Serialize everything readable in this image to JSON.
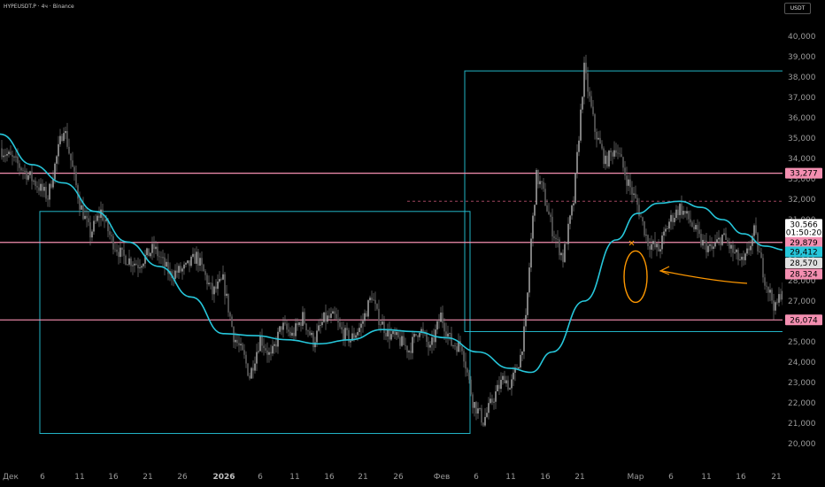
{
  "header": {
    "symbol": "HYPEUSDT.P · 4ч · Binance",
    "unit": "USDT"
  },
  "chart_data": {
    "type": "candlestick",
    "ylim": [
      20000,
      41000
    ],
    "y_ticks": [
      "20,000",
      "21,000",
      "22,000",
      "23,000",
      "24,000",
      "25,000",
      "26,000",
      "27,000",
      "28,000",
      "29,000",
      "30,000",
      "31,000",
      "32,000",
      "33,000",
      "34,000",
      "35,000",
      "36,000",
      "37,000",
      "38,000",
      "39,000",
      "40,000"
    ],
    "x_ticks": [
      {
        "label": "Дек",
        "bold": false
      },
      {
        "label": "6",
        "bold": false
      },
      {
        "label": "11",
        "bold": false
      },
      {
        "label": "16",
        "bold": false
      },
      {
        "label": "21",
        "bold": false
      },
      {
        "label": "26",
        "bold": false
      },
      {
        "label": "2026",
        "bold": true
      },
      {
        "label": "6",
        "bold": false
      },
      {
        "label": "11",
        "bold": false
      },
      {
        "label": "16",
        "bold": false
      },
      {
        "label": "21",
        "bold": false
      },
      {
        "label": "26",
        "bold": false
      },
      {
        "label": "Фев",
        "bold": false
      },
      {
        "label": "6",
        "bold": false
      },
      {
        "label": "11",
        "bold": false
      },
      {
        "label": "16",
        "bold": false
      },
      {
        "label": "21",
        "bold": false
      },
      {
        "label": "Мар",
        "bold": false
      },
      {
        "label": "6",
        "bold": false
      },
      {
        "label": "11",
        "bold": false
      },
      {
        "label": "16",
        "bold": false
      },
      {
        "label": "21",
        "bold": false
      }
    ],
    "price_path": [
      [
        0,
        34500
      ],
      [
        3,
        33800
      ],
      [
        6,
        33000
      ],
      [
        9,
        32100
      ],
      [
        12,
        35600
      ],
      [
        15,
        31800
      ],
      [
        17,
        30300
      ],
      [
        19,
        31400
      ],
      [
        21,
        30000
      ],
      [
        23,
        29200
      ],
      [
        26,
        28800
      ],
      [
        29,
        29600
      ],
      [
        32,
        28300
      ],
      [
        35,
        28600
      ],
      [
        37,
        29200
      ],
      [
        40,
        27400
      ],
      [
        42,
        28000
      ],
      [
        44,
        25300
      ],
      [
        46,
        24200
      ],
      [
        47,
        23300
      ],
      [
        49,
        25200
      ],
      [
        51,
        24200
      ],
      [
        53,
        25800
      ],
      [
        55,
        25300
      ],
      [
        57,
        26200
      ],
      [
        59,
        25000
      ],
      [
        61,
        26100
      ],
      [
        63,
        26200
      ],
      [
        64,
        25600
      ],
      [
        66,
        25100
      ],
      [
        68,
        25800
      ],
      [
        70,
        27300
      ],
      [
        71,
        26300
      ],
      [
        73,
        25400
      ],
      [
        75,
        25100
      ],
      [
        77,
        24600
      ],
      [
        79,
        25700
      ],
      [
        81,
        24600
      ],
      [
        83,
        26300
      ],
      [
        85,
        24900
      ],
      [
        87,
        24800
      ],
      [
        89,
        22100
      ],
      [
        91,
        21100
      ],
      [
        93,
        22300
      ],
      [
        95,
        23300
      ],
      [
        96,
        22700
      ],
      [
        98,
        24300
      ],
      [
        99,
        26000
      ],
      [
        100,
        30000
      ],
      [
        101,
        33100
      ],
      [
        102,
        32600
      ],
      [
        104,
        30500
      ],
      [
        106,
        29100
      ],
      [
        108,
        31900
      ],
      [
        110,
        38400
      ],
      [
        112,
        35400
      ],
      [
        114,
        33800
      ],
      [
        116,
        34600
      ],
      [
        118,
        33000
      ],
      [
        120,
        31700
      ],
      [
        122,
        29900
      ],
      [
        124,
        29500
      ],
      [
        126,
        30900
      ],
      [
        128,
        31600
      ],
      [
        130,
        30900
      ],
      [
        132,
        29900
      ],
      [
        134,
        29500
      ],
      [
        136,
        30200
      ],
      [
        138,
        29400
      ],
      [
        140,
        28800
      ],
      [
        142,
        30400
      ],
      [
        144,
        28100
      ],
      [
        146,
        26600
      ],
      [
        148,
        28200
      ],
      [
        150,
        27300
      ],
      [
        151,
        26700
      ],
      [
        152,
        28700
      ],
      [
        154,
        30600
      ],
      [
        155,
        31200
      ],
      [
        156,
        32300
      ],
      [
        157,
        33600
      ],
      [
        158,
        33200
      ],
      [
        160,
        31400
      ],
      [
        161,
        32200
      ],
      [
        162,
        31200
      ],
      [
        163,
        30600
      ]
    ],
    "ma_path": [
      [
        0,
        35200
      ],
      [
        6,
        33700
      ],
      [
        12,
        32800
      ],
      [
        18,
        31400
      ],
      [
        24,
        29900
      ],
      [
        30,
        28700
      ],
      [
        36,
        27200
      ],
      [
        42,
        25400
      ],
      [
        48,
        25300
      ],
      [
        54,
        25100
      ],
      [
        60,
        24900
      ],
      [
        66,
        25100
      ],
      [
        72,
        25600
      ],
      [
        78,
        25500
      ],
      [
        84,
        25200
      ],
      [
        90,
        24500
      ],
      [
        96,
        23700
      ],
      [
        100,
        23500
      ],
      [
        104,
        24500
      ],
      [
        110,
        27000
      ],
      [
        116,
        30000
      ],
      [
        120,
        31300
      ],
      [
        124,
        31800
      ],
      [
        128,
        31900
      ],
      [
        132,
        31600
      ],
      [
        136,
        31000
      ],
      [
        140,
        30300
      ],
      [
        144,
        29700
      ],
      [
        148,
        29500
      ],
      [
        150,
        29400
      ],
      [
        152,
        29350
      ],
      [
        154,
        29500
      ],
      [
        156,
        29700
      ]
    ],
    "boxes": [
      {
        "x0": 8,
        "x1": 88,
        "y0": 31400,
        "y1": 20500
      },
      {
        "x0": 88,
        "x1": 168,
        "y0": 38300,
        "y1": 25500
      }
    ],
    "h_lines": [
      {
        "price": 33277,
        "color": "#f48fb1",
        "style": "solid"
      },
      {
        "price": 29879,
        "color": "#f48fb1",
        "style": "solid"
      },
      {
        "price": 26074,
        "color": "#f48fb1",
        "style": "solid"
      },
      {
        "price": 31900,
        "color": "#a0455f",
        "style": "dashed"
      }
    ],
    "price_labels": [
      {
        "text": "33,277",
        "price": 33277,
        "bg": "#f48fb1",
        "fg": "#000000"
      },
      {
        "text": "30,566",
        "price": 30766,
        "bg": "#ffffff",
        "fg": "#000000"
      },
      {
        "text": "01:50:20",
        "price": 30366,
        "bg": "#ffffff",
        "fg": "#000000"
      },
      {
        "text": "29,879",
        "price": 29879,
        "bg": "#f48fb1",
        "fg": "#000000"
      },
      {
        "text": "29,412",
        "price": 29412,
        "bg": "#26c6da",
        "fg": "#000000"
      },
      {
        "text": "28,570",
        "price": 28870,
        "bg": "#e0e0e0",
        "fg": "#000000"
      },
      {
        "text": "28,324",
        "price": 28324,
        "bg": "#f48fb1",
        "fg": "#000000"
      },
      {
        "text": "26,074",
        "price": 26074,
        "bg": "#f48fb1",
        "fg": "#000000"
      }
    ],
    "colors": {
      "background": "#000000",
      "candles": "#8a8a8a",
      "ma": "#26c6da",
      "box": "#26c6da",
      "annotation": "#ff9800",
      "axis_text": "#9a9a9a"
    }
  }
}
